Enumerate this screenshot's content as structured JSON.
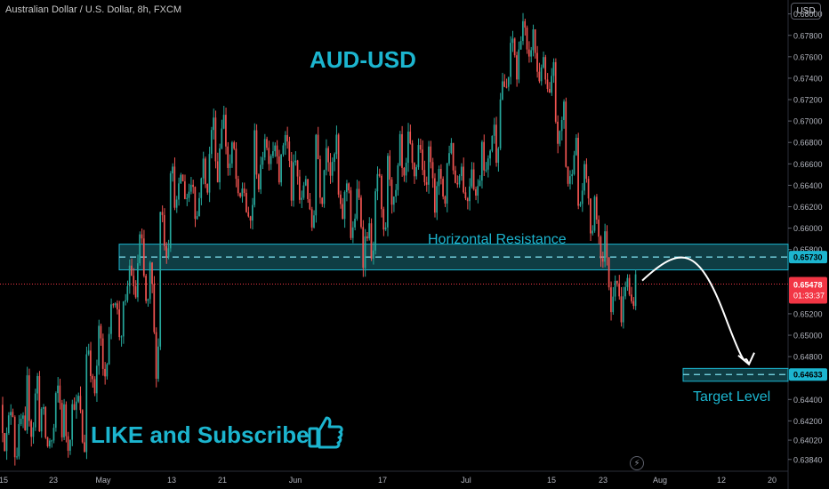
{
  "header": {
    "symbol": "Australian Dollar / U.S. Dollar, 8h, FXCM",
    "currency": "USD"
  },
  "annotations": {
    "title": "AUD-USD",
    "resistance_label": "Horizontal Resistance",
    "target_label": "Target Level",
    "cta": "LIKE and Subscribe",
    "cta_icon": "thumbs-up-icon",
    "replay_icon": "lightning-icon"
  },
  "colors": {
    "up": "#26a69a",
    "down": "#ef5350",
    "accent": "#1cb5cf",
    "zone_fill": "#0f3d44",
    "price": "#f23645"
  },
  "chart_data": {
    "type": "candlestick",
    "title": "Australian Dollar / U.S. Dollar, 8h, FXCM",
    "ylim": [
      0.6373,
      0.6813
    ],
    "y_ticks": [
      "0.68000",
      "0.67800",
      "0.67600",
      "0.67400",
      "0.67200",
      "0.67000",
      "0.66800",
      "0.66600",
      "0.66400",
      "0.66200",
      "0.66000",
      "0.65800",
      "0.65200",
      "0.65000",
      "0.64800",
      "0.64400",
      "0.64200",
      "0.64020",
      "0.63840"
    ],
    "x_ticks": [
      "15",
      "23",
      "May",
      "13",
      "21",
      "Jun",
      "17",
      "Jul",
      "15",
      "23",
      "Aug",
      "12",
      "20"
    ],
    "price_labels": [
      {
        "value": 0.6573,
        "text": "0.65730",
        "style": "zone"
      },
      {
        "value": 0.65478,
        "text": "0.65478",
        "countdown": "01:33:37",
        "style": "current"
      },
      {
        "value": 0.64633,
        "text": "0.64633",
        "style": "zone"
      }
    ],
    "hidden_label_ticks": [
      "0.65600",
      "0.64600"
    ],
    "resistance_zone": {
      "low": 0.6561,
      "high": 0.6585,
      "level": 0.6573
    },
    "target_zone": {
      "low": 0.6457,
      "high": 0.6469,
      "level": 0.64633
    },
    "current_price": 0.65478,
    "path_points": [
      0.6551,
      0.6569,
      0.6518,
      0.6477
    ],
    "price_path": [
      [
        0.6435,
        0.64
      ],
      [
        0.642,
        0.639
      ],
      [
        0.641,
        0.646
      ],
      [
        0.643,
        0.6395
      ],
      [
        0.64,
        0.645
      ],
      [
        0.644,
        0.64
      ],
      [
        0.6395,
        0.644
      ],
      [
        0.6445,
        0.649
      ],
      [
        0.646,
        0.651
      ],
      [
        0.654,
        0.65
      ],
      [
        0.652,
        0.6565
      ],
      [
        0.653,
        0.659
      ],
      [
        0.647,
        0.656
      ],
      [
        0.658,
        0.662
      ],
      [
        0.662,
        0.666
      ],
      [
        0.663,
        0.6645
      ],
      [
        0.661,
        0.666
      ],
      [
        0.664,
        0.67
      ],
      [
        0.6655,
        0.6705
      ],
      [
        0.662,
        0.6675
      ],
      [
        0.66,
        0.664
      ],
      [
        0.664,
        0.669
      ],
      [
        0.667,
        0.668
      ],
      [
        0.665,
        0.669
      ],
      [
        0.662,
        0.666
      ],
      [
        0.66,
        0.665
      ],
      [
        0.663,
        0.669
      ],
      [
        0.665,
        0.6685
      ],
      [
        0.661,
        0.6645
      ],
      [
        0.659,
        0.663
      ],
      [
        0.657,
        0.66
      ],
      [
        0.659,
        0.665
      ],
      [
        0.662,
        0.666
      ],
      [
        0.664,
        0.669
      ],
      [
        0.665,
        0.668
      ],
      [
        0.664,
        0.667
      ],
      [
        0.662,
        0.665
      ],
      [
        0.664,
        0.668
      ],
      [
        0.6625,
        0.666
      ],
      [
        0.663,
        0.6665
      ],
      [
        0.665,
        0.669
      ],
      [
        0.667,
        0.674
      ],
      [
        0.673,
        0.6775
      ],
      [
        0.675,
        0.6795
      ],
      [
        0.674,
        0.678
      ],
      [
        0.672,
        0.675
      ],
      [
        0.668,
        0.672
      ],
      [
        0.664,
        0.668
      ],
      [
        0.662,
        0.665
      ],
      [
        0.658,
        0.662
      ],
      [
        0.653,
        0.659
      ],
      [
        0.652,
        0.656
      ],
      [
        0.653,
        0.6555
      ]
    ]
  }
}
